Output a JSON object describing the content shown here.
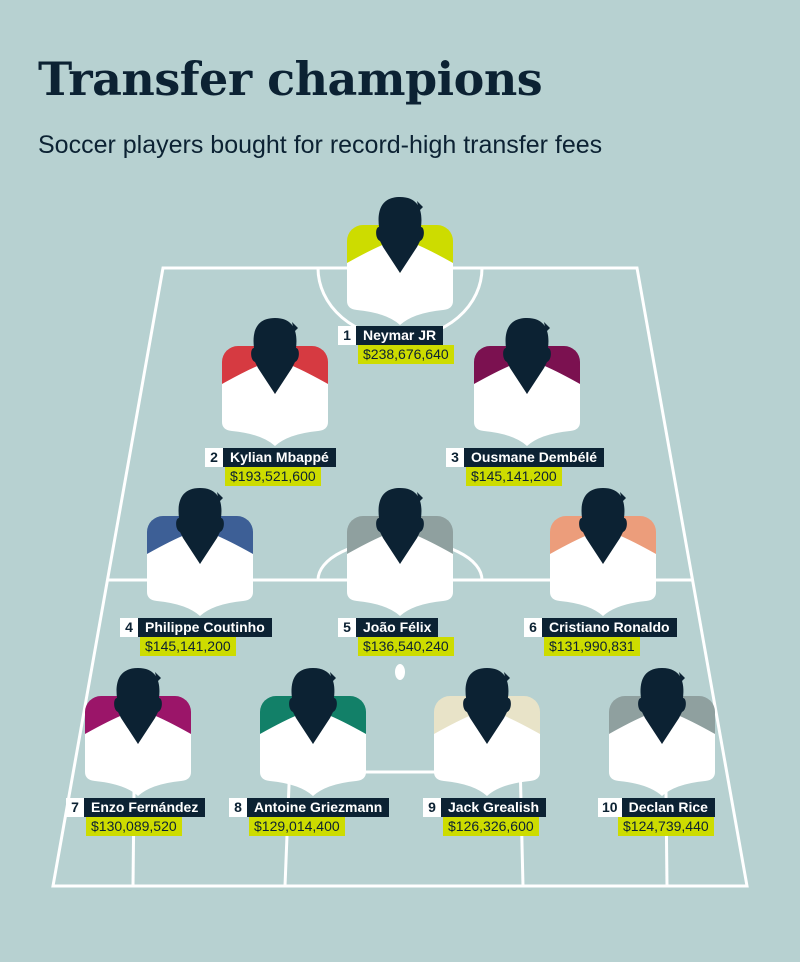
{
  "title": "Transfer champions",
  "subtitle": "Soccer players bought for record-high transfer fees",
  "colors": {
    "background": "#b7d1d1",
    "dark": "#0c2233",
    "fee_highlight": "#cddc00"
  },
  "players": [
    {
      "rank": "1",
      "name": "Neymar JR",
      "fee": "$238,676,640",
      "color": "#cddc00"
    },
    {
      "rank": "2",
      "name": "Kylian Mbappé",
      "fee": "$193,521,600",
      "color": "#d63a41"
    },
    {
      "rank": "3",
      "name": "Ousmane Dembélé",
      "fee": "$145,141,200",
      "color": "#7b1150"
    },
    {
      "rank": "4",
      "name": "Philippe Coutinho",
      "fee": "$145,141,200",
      "color": "#3d5f96"
    },
    {
      "rank": "5",
      "name": "João Félix",
      "fee": "$136,540,240",
      "color": "#8fa09f"
    },
    {
      "rank": "6",
      "name": "Cristiano Ronaldo",
      "fee": "$131,990,831",
      "color": "#ec9d7b"
    },
    {
      "rank": "7",
      "name": "Enzo Fernández",
      "fee": "$130,089,520",
      "color": "#9b1569"
    },
    {
      "rank": "8",
      "name": "Antoine Griezmann",
      "fee": "$129,014,400",
      "color": "#128068"
    },
    {
      "rank": "9",
      "name": "Jack Grealish",
      "fee": "$126,326,600",
      "color": "#e8e3c8"
    },
    {
      "rank": "10",
      "name": "Declan Rice",
      "fee": "$124,739,440",
      "color": "#8fa09f"
    }
  ]
}
